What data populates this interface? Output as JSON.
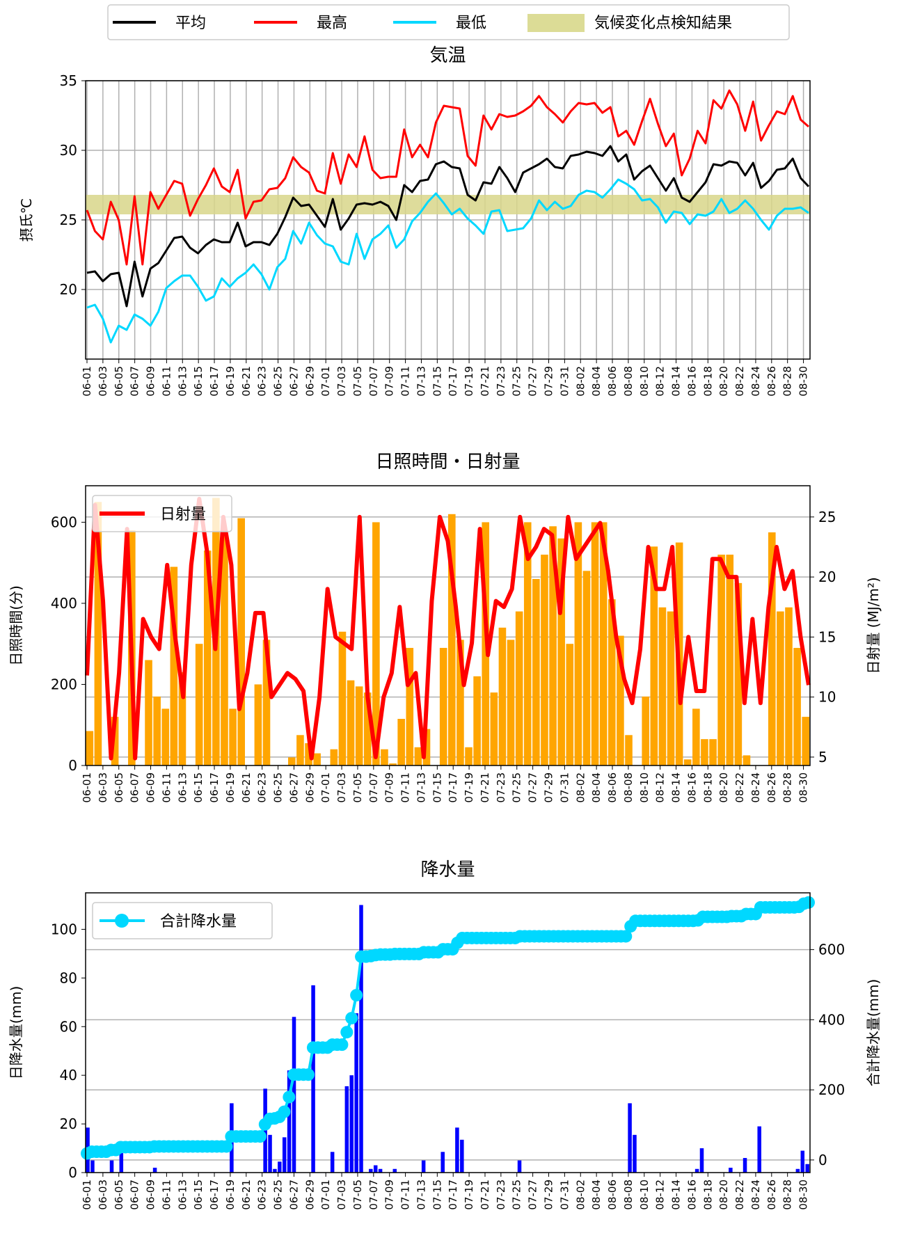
{
  "chart_data": [
    {
      "type": "line",
      "title": "気温",
      "ylabel": "摂氏℃",
      "ylim": [
        15,
        35
      ],
      "yticks": [
        20,
        25,
        30,
        35
      ],
      "grid": "both",
      "band": {
        "label": "気候変化点検知結果",
        "y0": 25.4,
        "y1": 26.8,
        "color": "#d8d68a"
      },
      "legend": {
        "placement": "top",
        "items": [
          {
            "label": "平均",
            "color": "#000000",
            "kind": "line"
          },
          {
            "label": "最高",
            "color": "#ff0000",
            "kind": "line"
          },
          {
            "label": "最低",
            "color": "#00d8ff",
            "kind": "line"
          },
          {
            "label": "気候変化点検知結果",
            "color": "#dcdc96",
            "kind": "patch"
          }
        ]
      },
      "series": [
        {
          "name": "平均",
          "color": "#000000",
          "values": [
            21.2,
            21.3,
            20.6,
            21.1,
            21.2,
            18.8,
            22.0,
            19.5,
            21.5,
            21.9,
            22.8,
            23.7,
            23.8,
            23.0,
            22.6,
            23.2,
            23.6,
            23.4,
            23.4,
            24.8,
            23.1,
            23.4,
            23.4,
            23.2,
            24.0,
            25.2,
            26.6,
            26.0,
            26.1,
            25.3,
            24.5,
            26.5,
            24.3,
            25.1,
            26.1,
            26.2,
            26.1,
            26.3,
            26.0,
            25.0,
            27.5,
            27.0,
            27.8,
            27.9,
            29.0,
            29.2,
            28.8,
            28.7,
            26.8,
            26.4,
            27.7,
            27.6,
            28.8,
            28.0,
            27.0,
            28.4,
            28.7,
            29.0,
            29.4,
            28.8,
            28.7,
            29.6,
            29.7,
            29.9,
            29.8,
            29.6,
            30.3,
            29.2,
            29.7,
            27.9,
            28.5,
            28.9,
            28.0,
            27.1,
            28.0,
            26.6,
            26.3,
            27.0,
            27.7,
            29.0,
            28.9,
            29.2,
            29.1,
            28.2,
            29.1,
            27.3,
            27.8,
            28.6,
            28.7,
            29.4,
            28.0,
            27.4
          ]
        },
        {
          "name": "最高",
          "color": "#ff0000",
          "values": [
            25.7,
            24.2,
            23.6,
            26.3,
            25.0,
            21.8,
            26.7,
            21.8,
            27.0,
            25.8,
            26.8,
            27.8,
            27.6,
            25.3,
            26.5,
            27.5,
            28.7,
            27.4,
            27.0,
            28.6,
            25.1,
            26.3,
            26.4,
            27.2,
            27.3,
            28.0,
            29.5,
            28.8,
            28.4,
            27.1,
            26.9,
            29.8,
            27.6,
            29.7,
            28.8,
            31.0,
            28.6,
            28.0,
            28.1,
            28.1,
            31.5,
            29.5,
            30.4,
            29.5,
            32.0,
            33.2,
            33.1,
            33.0,
            29.6,
            28.9,
            32.5,
            31.5,
            32.6,
            32.4,
            32.5,
            32.8,
            33.2,
            33.9,
            33.1,
            32.6,
            32.0,
            32.8,
            33.4,
            33.3,
            33.4,
            32.7,
            33.1,
            31.0,
            31.4,
            30.4,
            32.1,
            33.7,
            31.9,
            30.3,
            31.2,
            28.2,
            29.4,
            31.4,
            30.5,
            33.6,
            33.0,
            34.3,
            33.3,
            31.4,
            33.5,
            30.7,
            31.8,
            32.8,
            32.6,
            33.9,
            32.2,
            31.7
          ]
        },
        {
          "name": "最低",
          "color": "#00d8ff",
          "values": [
            18.7,
            18.9,
            17.9,
            16.2,
            17.4,
            17.1,
            18.2,
            17.9,
            17.4,
            18.4,
            20.1,
            20.6,
            21.0,
            21.0,
            20.2,
            19.2,
            19.5,
            20.8,
            20.2,
            20.8,
            21.2,
            21.8,
            21.1,
            20.0,
            21.6,
            22.2,
            24.2,
            23.3,
            24.8,
            23.9,
            23.3,
            23.1,
            22.0,
            21.8,
            24.0,
            22.2,
            23.6,
            24.0,
            24.6,
            23.0,
            23.6,
            24.9,
            25.5,
            26.3,
            26.9,
            26.2,
            25.4,
            25.8,
            25.1,
            24.6,
            24.0,
            25.6,
            25.7,
            24.2,
            24.3,
            24.4,
            25.1,
            26.4,
            25.7,
            26.3,
            25.8,
            26.0,
            26.8,
            27.1,
            27.0,
            26.6,
            27.2,
            27.9,
            27.6,
            27.2,
            26.4,
            26.5,
            25.9,
            24.8,
            25.6,
            25.5,
            24.7,
            25.4,
            25.3,
            25.6,
            26.5,
            25.5,
            25.8,
            26.4,
            25.8,
            25.0,
            24.3,
            25.3,
            25.8,
            25.8,
            25.9,
            25.5
          ]
        }
      ],
      "x_ticks": [
        "06-01",
        "06-03",
        "06-05",
        "06-07",
        "06-09",
        "06-11",
        "06-13",
        "06-15",
        "06-17",
        "06-19",
        "06-21",
        "06-23",
        "06-25",
        "06-27",
        "06-29",
        "07-01",
        "07-03",
        "07-05",
        "07-07",
        "07-09",
        "07-11",
        "07-13",
        "07-15",
        "07-17",
        "07-19",
        "07-21",
        "07-23",
        "07-25",
        "07-27",
        "07-29",
        "07-31",
        "08-02",
        "08-04",
        "08-06",
        "08-08",
        "08-10",
        "08-12",
        "08-14",
        "08-16",
        "08-18",
        "08-20",
        "08-22",
        "08-24",
        "08-26",
        "08-28",
        "08-30"
      ]
    },
    {
      "type": "bar",
      "title": "日照時間・日射量",
      "ylabel": "日照時間(分)",
      "ylim": [
        0,
        690
      ],
      "yticks": [
        0,
        200,
        400,
        600
      ],
      "y2label": "日射量 (MJ/m²)",
      "y2lim": [
        4.3,
        27.6
      ],
      "y2ticks": [
        5,
        10,
        15,
        20,
        25
      ],
      "grid": "y",
      "legend": {
        "placement": "top-left",
        "items": [
          {
            "label": "日射量",
            "color": "#ff0000",
            "kind": "line"
          }
        ]
      },
      "bar_series": {
        "name": "日照時間",
        "color": "#ffa500",
        "values": [
          85,
          650,
          0,
          120,
          0,
          580,
          0,
          260,
          170,
          140,
          490,
          230,
          0,
          300,
          530,
          660,
          570,
          140,
          610,
          0,
          200,
          310,
          0,
          0,
          20,
          75,
          55,
          30,
          0,
          40,
          330,
          210,
          195,
          180,
          600,
          40,
          5,
          115,
          290,
          45,
          90,
          0,
          290,
          620,
          310,
          45,
          220,
          600,
          180,
          340,
          310,
          380,
          600,
          460,
          520,
          590,
          560,
          300,
          600,
          480,
          600,
          600,
          410,
          320,
          75,
          0,
          170,
          540,
          390,
          380,
          550,
          15,
          140,
          65,
          65,
          520,
          520,
          450,
          25,
          0,
          0,
          575,
          380,
          390,
          290,
          120
        ]
      },
      "line_series": {
        "name": "日射量",
        "color": "#ff0000",
        "values": [
          11.8,
          26.0,
          18.0,
          4.9,
          12.0,
          24.0,
          4.9,
          16.5,
          15.0,
          14.0,
          21.0,
          15.0,
          10.0,
          21.0,
          26.5,
          22.0,
          14.0,
          25.0,
          21.0,
          9.0,
          12.0,
          17.0,
          17.0,
          10.0,
          11.0,
          12.0,
          11.5,
          10.5,
          4.9,
          10.0,
          19.0,
          15.0,
          14.5,
          14.0,
          25.0,
          10.0,
          5.0,
          10.0,
          12.0,
          17.5,
          11.0,
          12.0,
          5.0,
          18.0,
          25.0,
          23.0,
          17.5,
          11.0,
          14.5,
          24.0,
          13.5,
          18.0,
          17.5,
          19.0,
          25.0,
          21.5,
          22.5,
          24.0,
          23.5,
          17.0,
          25.0,
          21.5,
          22.5,
          23.5,
          24.5,
          20.5,
          15.0,
          11.5,
          9.5,
          14.0,
          22.5,
          19.0,
          19.0,
          22.5,
          9.5,
          15.0,
          10.5,
          10.5,
          21.5,
          21.5,
          20.0,
          20.0,
          9.5,
          16.5,
          9.5,
          17.5,
          22.5,
          19.0,
          20.5,
          15.0,
          11.0
        ]
      },
      "x_ticks": [
        "06-01",
        "06-03",
        "06-05",
        "06-07",
        "06-09",
        "06-11",
        "06-13",
        "06-15",
        "06-17",
        "06-19",
        "06-21",
        "06-23",
        "06-25",
        "06-27",
        "06-29",
        "07-01",
        "07-03",
        "07-05",
        "07-07",
        "07-09",
        "07-11",
        "07-13",
        "07-15",
        "07-17",
        "07-19",
        "07-21",
        "07-23",
        "07-25",
        "07-27",
        "07-29",
        "07-31",
        "08-02",
        "08-04",
        "08-06",
        "08-08",
        "08-10",
        "08-12",
        "08-14",
        "08-16",
        "08-18",
        "08-20",
        "08-22",
        "08-24",
        "08-26",
        "08-28",
        "08-30"
      ]
    },
    {
      "type": "bar",
      "title": "降水量",
      "ylabel": "日降水量(mm)",
      "ylim": [
        0,
        115
      ],
      "yticks": [
        0,
        20,
        40,
        60,
        80,
        100
      ],
      "y2label": "合計降水量(mm)",
      "y2lim": [
        -36,
        762
      ],
      "y2ticks": [
        0,
        200,
        400,
        600
      ],
      "grid": "y",
      "legend": {
        "placement": "top-left",
        "items": [
          {
            "label": "合計降水量",
            "color": "#00d8ff",
            "kind": "line-marker"
          }
        ]
      },
      "bar_series": {
        "name": "日降水量",
        "color": "#0000ff",
        "values": [
          18.5,
          5,
          0,
          0,
          0,
          5,
          0,
          8,
          0,
          0,
          0,
          0,
          0,
          0,
          2,
          0,
          0,
          0,
          0,
          0,
          0,
          0,
          0,
          0,
          0,
          0,
          0,
          0,
          0,
          0,
          28.5,
          0,
          0,
          0,
          0,
          0,
          0,
          34.5,
          15.5,
          1.5,
          4.5,
          14.5,
          42,
          64,
          0,
          0,
          0,
          77,
          0,
          0,
          0,
          8.5,
          0,
          0,
          35.5,
          40,
          65.5,
          110,
          0,
          1.5,
          3,
          1.5,
          0,
          0,
          1.5,
          0,
          0,
          0,
          0,
          0,
          5,
          0,
          0,
          0,
          8.5,
          0,
          0,
          18.5,
          13.5,
          0,
          0,
          0,
          0,
          0,
          0,
          0,
          0,
          0,
          0,
          0,
          5,
          0,
          0,
          0,
          0,
          0,
          0,
          0,
          0,
          0,
          0,
          0,
          0,
          0,
          0,
          0,
          0,
          0,
          0,
          0,
          0,
          0,
          0,
          28.5,
          15.5,
          0,
          0,
          0,
          0,
          0,
          0,
          0,
          0,
          0,
          0,
          0,
          0,
          1.5,
          10,
          0,
          0,
          0,
          0,
          0,
          2,
          0,
          0,
          6,
          0,
          0,
          19,
          0,
          0,
          0,
          0,
          0,
          0,
          0,
          1.5,
          9,
          3.5
        ]
      },
      "line_series": {
        "name": "合計降水量",
        "color": "#00d8ff",
        "values": [
          18.5,
          23.5,
          23.5,
          23.5,
          23.5,
          28.5,
          28.5,
          36.5,
          36.5,
          36.5,
          36.5,
          36.5,
          36.5,
          36.5,
          38.5,
          38.5,
          38.5,
          38.5,
          38.5,
          38.5,
          38.5,
          38.5,
          38.5,
          38.5,
          38.5,
          38.5,
          38.5,
          38.5,
          38.5,
          38.5,
          67,
          67,
          67,
          67,
          67,
          67,
          67,
          101.5,
          117,
          118.5,
          123,
          137.5,
          179.5,
          243.5,
          243.5,
          243.5,
          243.5,
          320.5,
          320.5,
          320.5,
          320.5,
          329,
          329,
          329,
          364.5,
          404.5,
          470,
          580,
          580,
          581.5,
          584.5,
          586,
          586,
          586,
          587.5,
          587.5,
          587.5,
          587.5,
          587.5,
          587.5,
          592.5,
          592.5,
          592.5,
          592.5,
          601,
          601,
          601,
          619.5,
          633,
          633,
          633,
          633,
          633,
          633,
          633,
          633,
          633,
          633,
          633,
          633,
          638,
          638,
          638,
          638,
          638,
          638,
          638,
          638,
          638,
          638,
          638,
          638,
          638,
          638,
          638,
          638,
          638,
          638,
          638,
          638,
          638,
          638,
          638,
          666.5,
          682,
          682,
          682,
          682,
          682,
          682,
          682,
          682,
          682,
          682,
          682,
          682,
          682,
          683.5,
          693.5,
          693.5,
          693.5,
          693.5,
          693.5,
          693.5,
          695.5,
          695.5,
          695.5,
          701.5,
          701.5,
          701.5,
          720.5,
          720.5,
          720.5,
          720.5,
          720.5,
          720.5,
          720.5,
          720.5,
          722,
          731,
          734.5
        ]
      },
      "x_ticks": [
        "06-01",
        "06-03",
        "06-05",
        "06-07",
        "06-09",
        "06-11",
        "06-13",
        "06-15",
        "06-17",
        "06-19",
        "06-21",
        "06-23",
        "06-25",
        "06-27",
        "06-29",
        "07-01",
        "07-03",
        "07-05",
        "07-07",
        "07-09",
        "07-11",
        "07-13",
        "07-15",
        "07-17",
        "07-19",
        "07-21",
        "07-23",
        "07-25",
        "07-27",
        "07-29",
        "07-31",
        "08-02",
        "08-04",
        "08-06",
        "08-08",
        "08-10",
        "08-12",
        "08-14",
        "08-16",
        "08-18",
        "08-20",
        "08-22",
        "08-24",
        "08-26",
        "08-28",
        "08-30"
      ]
    }
  ]
}
